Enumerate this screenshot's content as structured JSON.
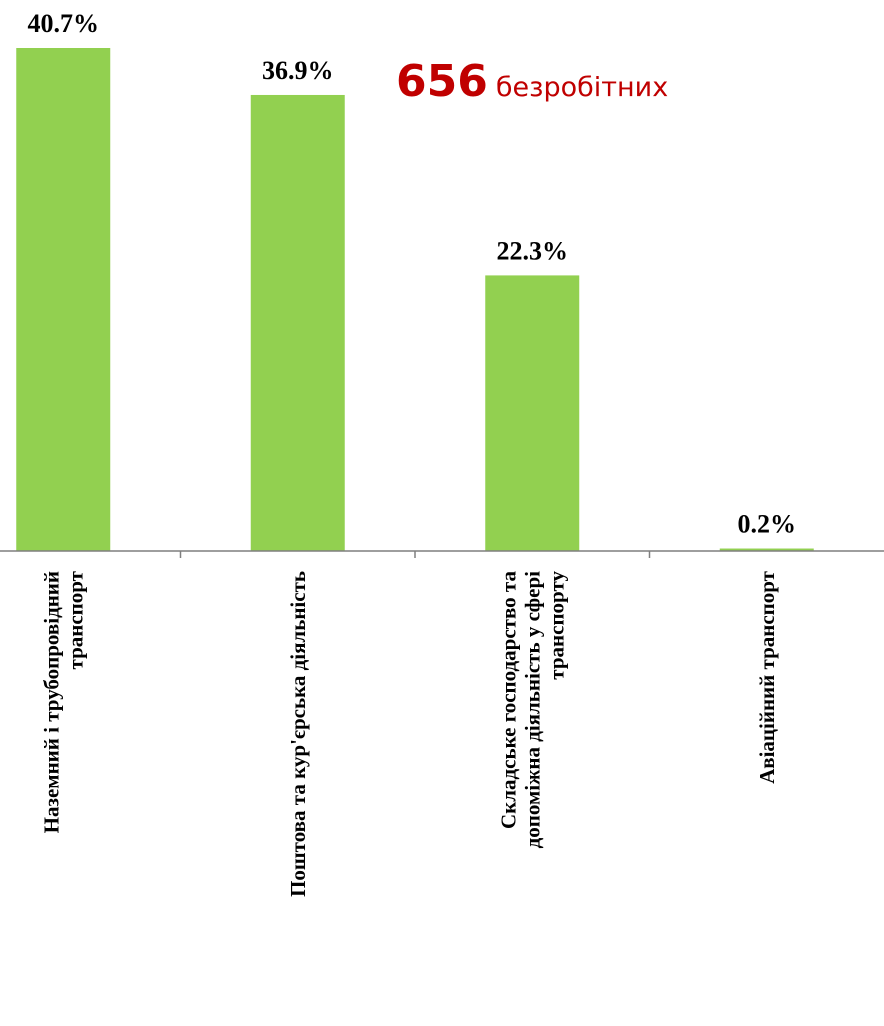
{
  "callout": {
    "number": "656",
    "text": "безробітних",
    "color": "#c00000"
  },
  "chart_data": {
    "type": "bar",
    "title": "",
    "xlabel": "",
    "ylabel": "",
    "ylim": [
      0,
      40.7
    ],
    "bar_color": "#92d050",
    "categories": [
      "Наземний і трубопровідний транспорт",
      "Поштова та кур'єрська діяльність",
      "Складське господарство та допоміжна діяльність у сфері транспорту",
      "Авіаційний транспорт"
    ],
    "category_lines": [
      [
        "Наземний і трубопровідний",
        "транспорт"
      ],
      [
        "Поштова та кур'єрська діяльність"
      ],
      [
        "Складське господарство та",
        "допоміжна діяльність у сфері",
        "транспорту"
      ],
      [
        "Авіаційний транспорт"
      ]
    ],
    "values": [
      40.7,
      36.9,
      22.3,
      0.2
    ],
    "data_labels": [
      "40.7%",
      "36.9%",
      "22.3%",
      "0.2%"
    ]
  }
}
